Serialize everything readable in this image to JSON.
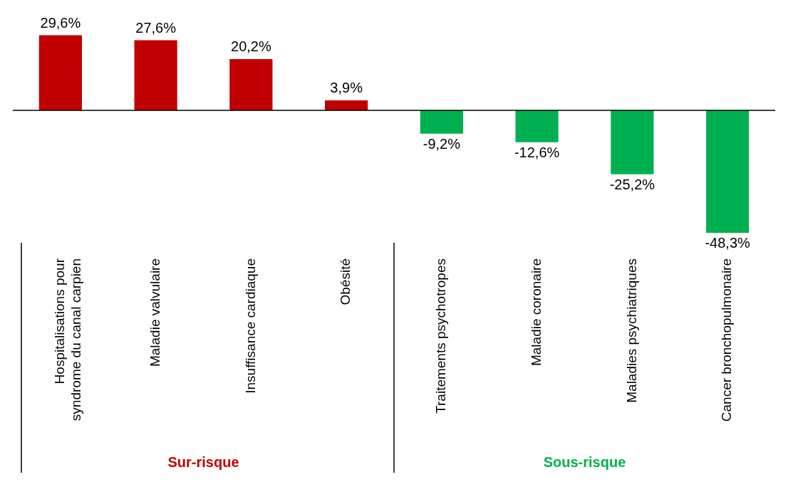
{
  "chart_data": {
    "type": "bar",
    "categories": [
      "Hospitalisations pour syndrome du canal carpien",
      "Maladie valvulaire",
      "Insuffisance cardiaque",
      "Obésité",
      "Traitements psychotropes",
      "Maladie coronaire",
      "Maladies psychiatriques",
      "Cancer bronchopulmonaire"
    ],
    "values": [
      29.6,
      27.6,
      20.2,
      3.9,
      -9.2,
      -12.6,
      -25.2,
      -48.3
    ],
    "colors": [
      "#c00000",
      "#c00000",
      "#c00000",
      "#c00000",
      "#00b050",
      "#00b050",
      "#00b050",
      "#00b050"
    ],
    "value_labels": [
      "29,6%",
      "27,6%",
      "20,2%",
      "3,9%",
      "-9,2%",
      "-12,6%",
      "-25,2%",
      "-48,3%"
    ],
    "annotations": [
      "Sur-risque",
      "Sous-risque"
    ],
    "grid": false,
    "legend": false
  }
}
